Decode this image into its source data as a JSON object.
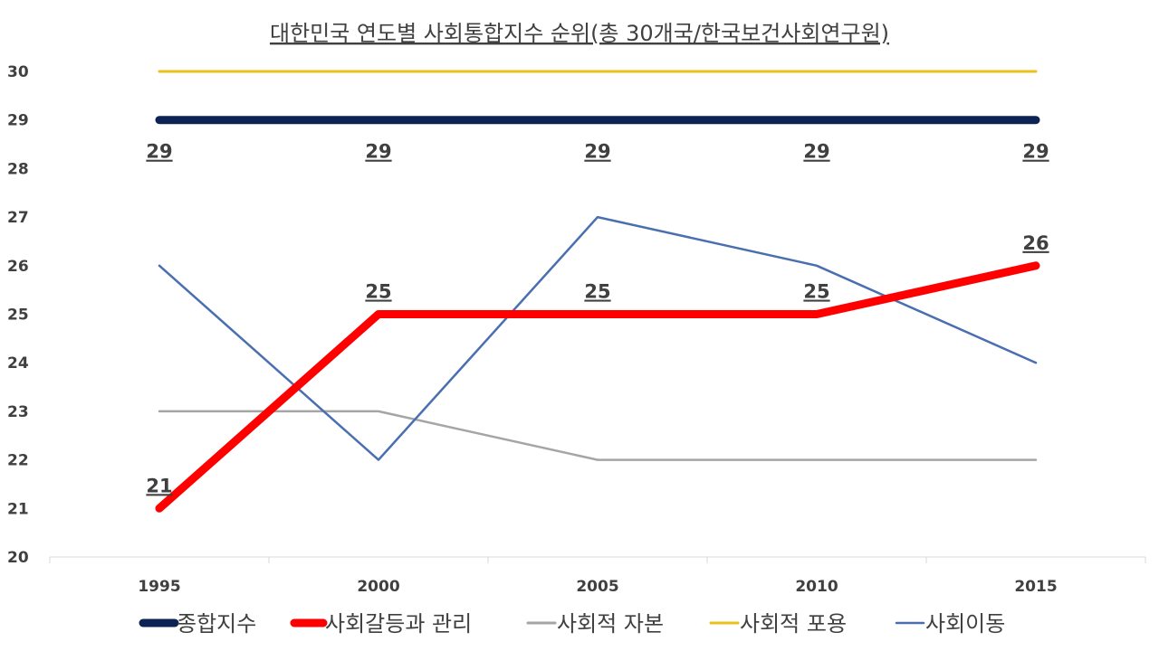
{
  "chart_data": {
    "type": "line",
    "title": "대한민국 연도별 사회통합지수 순위(총 30개국/한국보건사회연구원)",
    "xlabel": "",
    "ylabel": "",
    "categories": [
      "1995",
      "2000",
      "2005",
      "2010",
      "2015"
    ],
    "ylim": [
      20,
      30
    ],
    "yticks": [
      "20",
      "21",
      "22",
      "23",
      "24",
      "25",
      "26",
      "27",
      "28",
      "29",
      "30"
    ],
    "legend_position": "bottom",
    "grid": false,
    "series": [
      {
        "name": "종합지수",
        "values": [
          29,
          29,
          29,
          29,
          29
        ],
        "color": "#0d2354",
        "show_labels": true,
        "labels_below": true
      },
      {
        "name": "사회갈등과 관리",
        "values": [
          21,
          25,
          25,
          25,
          26
        ],
        "color": "#ff0000",
        "show_labels": true,
        "labels_below": false
      },
      {
        "name": "사회적 자본",
        "values": [
          23,
          23,
          22,
          22,
          22
        ],
        "color": "#a5a5a5",
        "show_labels": false
      },
      {
        "name": "사회적 포용",
        "values": [
          30,
          30,
          30,
          30,
          30
        ],
        "color": "#ecc01a",
        "show_labels": false
      },
      {
        "name": "사회이동",
        "values": [
          26,
          22,
          27,
          26,
          24
        ],
        "color": "#4a6fb0",
        "show_labels": false
      }
    ]
  }
}
